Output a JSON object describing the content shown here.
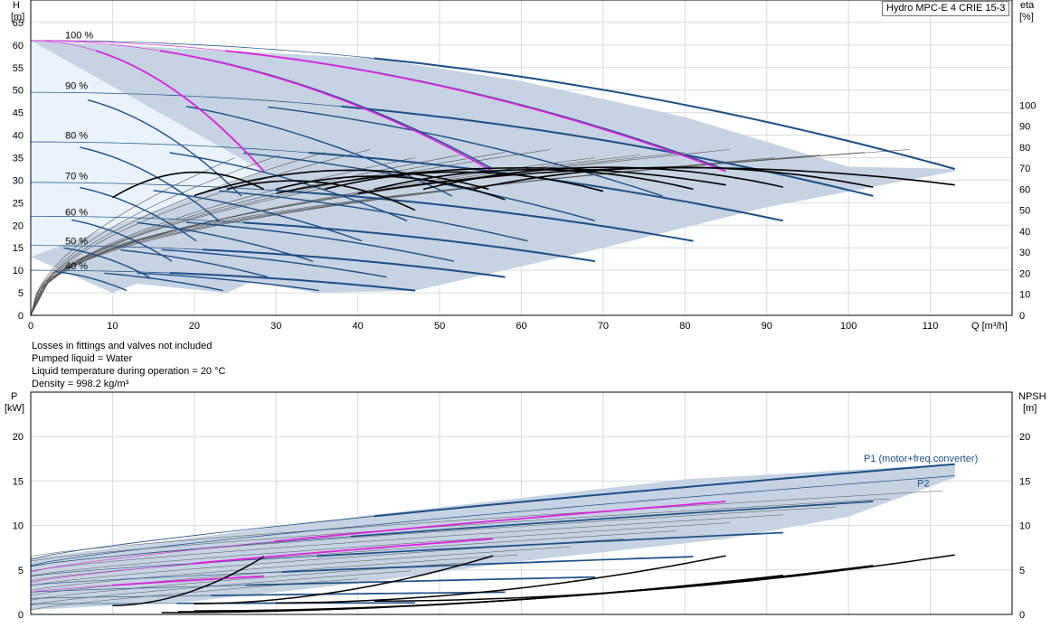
{
  "model": "Hydro MPC-E 4 CRIE 15-3",
  "notes": [
    "Losses in fittings and valves not included",
    "Pumped liquid = Water",
    "Liquid temperature during operation = 20 °C",
    "Density = 998.2 kg/m³"
  ],
  "colors": {
    "envelope": "#c5d3e2",
    "grid": "#dcdcdc",
    "curve_blue": "#1a4f86",
    "curve_magenta": "#e020e0",
    "curve_black": "#000000",
    "system": "#555555"
  },
  "chart_data": [
    {
      "type": "line",
      "name": "qh-eta",
      "title": "",
      "ylabel": "H",
      "yunit": "[m]",
      "y2label": "eta",
      "y2unit": "[%]",
      "xlabel": "Q [m³/h]",
      "xlim": [
        0,
        120
      ],
      "ylim": [
        0,
        70
      ],
      "y2lim": [
        0,
        150
      ],
      "grid": true,
      "xticks": [
        0,
        10,
        20,
        30,
        40,
        50,
        60,
        70,
        80,
        90,
        100,
        110
      ],
      "yticks": [
        0,
        5,
        10,
        15,
        20,
        25,
        30,
        35,
        40,
        45,
        50,
        55,
        60,
        65
      ],
      "y2ticks": [
        0,
        10,
        20,
        30,
        40,
        50,
        60,
        70,
        80,
        90,
        100
      ],
      "speed_labels": [
        {
          "text": "100 %",
          "h": 62.3
        },
        {
          "text": "90 %",
          "h": 51.0
        },
        {
          "text": "80 %",
          "h": 40.0
        },
        {
          "text": "70 %",
          "h": 31.0
        },
        {
          "text": "60 %",
          "h": 23.0
        },
        {
          "text": "50 %",
          "h": 16.5
        },
        {
          "text": "40 %",
          "h": 11.0
        }
      ],
      "envelope": {
        "upper": [
          [
            0,
            61
          ],
          [
            42,
            57
          ],
          [
            60,
            52
          ],
          [
            80,
            44
          ],
          [
            100,
            33
          ],
          [
            113,
            32.5
          ]
        ],
        "lower": [
          [
            113,
            32
          ],
          [
            90,
            24
          ],
          [
            70,
            15
          ],
          [
            47,
            5.5
          ],
          [
            35,
            5
          ],
          [
            27,
            7.5
          ],
          [
            24,
            5
          ],
          [
            13,
            7
          ],
          [
            10,
            5
          ],
          [
            5,
            9
          ],
          [
            0,
            13
          ]
        ]
      },
      "qh_curves": [
        {
          "h0": 61.0,
          "qmax": 113,
          "hend": 32.5,
          "stages": [
            8,
            21,
            32,
            42
          ]
        },
        {
          "h0": 49.5,
          "qmax": 103,
          "hend": 26.5,
          "stages": [
            7,
            19,
            29,
            38
          ]
        },
        {
          "h0": 38.5,
          "qmax": 92,
          "hend": 21.0,
          "stages": [
            6,
            17,
            26,
            34
          ]
        },
        {
          "h0": 29.5,
          "qmax": 81,
          "hend": 16.5,
          "stages": [
            6,
            15,
            23,
            30
          ]
        },
        {
          "h0": 22.0,
          "qmax": 69,
          "hend": 12.0,
          "stages": [
            5,
            13,
            19,
            26
          ]
        },
        {
          "h0": 15.5,
          "qmax": 58,
          "hend": 8.5,
          "stages": [
            4,
            11,
            16,
            21
          ]
        },
        {
          "h0": 10.0,
          "qmax": 47,
          "hend": 5.5,
          "stages": [
            3,
            9,
            13,
            17
          ]
        }
      ],
      "pump_curves_magenta": [
        {
          "start": [
            0,
            61
          ],
          "end": [
            28.5,
            32
          ]
        },
        {
          "start": [
            0,
            61
          ],
          "end": [
            56.5,
            32
          ]
        },
        {
          "start": [
            0,
            61
          ],
          "end": [
            85,
            32
          ]
        }
      ],
      "eta_curves": [
        {
          "q": [
            10,
            21,
            28.5
          ],
          "eta": [
            56,
            68,
            60
          ]
        },
        {
          "q": [
            20,
            38,
            56
          ],
          "eta": [
            57,
            69,
            60
          ]
        },
        {
          "q": [
            30,
            57,
            85
          ],
          "eta": [
            58,
            70,
            62
          ]
        },
        {
          "q": [
            40,
            75,
            113
          ],
          "eta": [
            58,
            70,
            62
          ]
        },
        {
          "q": [
            24,
            32,
            47
          ],
          "eta": [
            60,
            64,
            50
          ]
        },
        {
          "q": [
            30,
            40,
            58
          ],
          "eta": [
            60,
            66,
            55
          ]
        },
        {
          "q": [
            36,
            50,
            70
          ],
          "eta": [
            60,
            68,
            59
          ]
        },
        {
          "q": [
            42,
            58,
            81
          ],
          "eta": [
            60,
            69,
            60
          ]
        },
        {
          "q": [
            48,
            66,
            92
          ],
          "eta": [
            60,
            70,
            61
          ]
        },
        {
          "q": [
            54,
            74,
            103
          ],
          "eta": [
            60,
            70,
            61
          ]
        }
      ]
    },
    {
      "type": "line",
      "name": "power-npsh",
      "title": "",
      "ylabel": "P",
      "yunit": "[kW]",
      "y2label": "NPSH",
      "y2unit": "[m]",
      "xlim": [
        0,
        120
      ],
      "ylim": [
        0,
        25
      ],
      "grid": true,
      "yticks": [
        0,
        5,
        10,
        15,
        20
      ],
      "y2ticks": [
        0,
        5,
        10,
        15,
        20
      ],
      "series": [
        {
          "name": "P1 (motor+freq.converter)",
          "p0": 6.2,
          "qmax": 113,
          "pend": 16.9
        },
        {
          "name": "P2",
          "p0": 5.5,
          "qmax": 113,
          "pend": 15.6
        }
      ],
      "envelope": {
        "upper": [
          [
            0,
            6.3
          ],
          [
            40,
            11
          ],
          [
            80,
            15.2
          ],
          [
            113,
            16.9
          ]
        ],
        "lower": [
          [
            113,
            15.4
          ],
          [
            100,
            11
          ],
          [
            85,
            8.5
          ],
          [
            60,
            6
          ],
          [
            40,
            3.5
          ],
          [
            20,
            1.5
          ],
          [
            0,
            0.5
          ]
        ]
      },
      "power_curves": [
        {
          "p0": 5.4,
          "qmax": 103,
          "pend": 12.7
        },
        {
          "p0": 4.3,
          "qmax": 92,
          "pend": 9.2
        },
        {
          "p0": 3.3,
          "qmax": 81,
          "pend": 6.5
        },
        {
          "p0": 2.5,
          "qmax": 69,
          "pend": 4.2
        },
        {
          "p0": 1.8,
          "qmax": 58,
          "pend": 2.5
        },
        {
          "p0": 1.2,
          "qmax": 47,
          "pend": 1.3
        }
      ],
      "magenta_curves": [
        {
          "p0": 2.5,
          "qmax": 28.5,
          "pend": 4.3
        },
        {
          "p0": 3.6,
          "qmax": 56.5,
          "pend": 8.5
        },
        {
          "p0": 4.8,
          "qmax": 85,
          "pend": 12.7
        }
      ],
      "npsh_curves": [
        {
          "qmin": 10,
          "qmax": 28.5,
          "n0": 1.0,
          "nend": 6.5
        },
        {
          "qmin": 20,
          "qmax": 56.5,
          "n0": 1.2,
          "nend": 6.6
        },
        {
          "qmin": 30,
          "qmax": 85,
          "n0": 1.3,
          "nend": 6.6
        },
        {
          "qmin": 42,
          "qmax": 113,
          "n0": 1.5,
          "nend": 6.7
        },
        {
          "qmin": 20,
          "qmax": 103,
          "n0": 0.4,
          "nend": 5.5
        },
        {
          "qmin": 18,
          "qmax": 92,
          "n0": 0.3,
          "nend": 4.4
        },
        {
          "qmin": 16,
          "qmax": 81,
          "n0": 0.2,
          "nend": 3.3
        }
      ]
    }
  ]
}
